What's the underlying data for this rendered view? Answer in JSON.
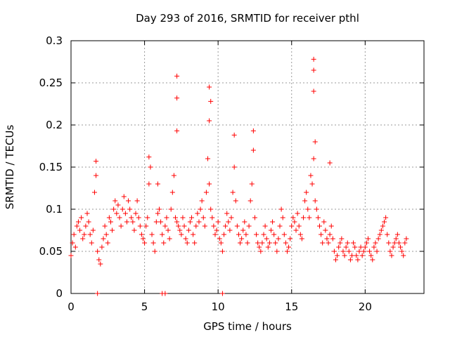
{
  "chart_data": {
    "type": "scatter",
    "title": "Day 293 of 2016, SRMTID for receiver pthl",
    "xlabel": "GPS time / hours",
    "ylabel": "SRMTID / TECUs",
    "xlim": [
      0,
      24
    ],
    "ylim": [
      0,
      0.3
    ],
    "x_ticks": [
      0,
      5,
      10,
      15,
      20
    ],
    "x_tick_labels": [
      "0",
      "5",
      "10",
      "15",
      "20"
    ],
    "y_ticks": [
      0,
      0.05,
      0.1,
      0.15,
      0.2,
      0.25,
      0.3
    ],
    "y_tick_labels": [
      "0",
      "0.05",
      "0.1",
      "0.15",
      "0.2",
      "0.25",
      "0.3"
    ],
    "grid": true,
    "marker": "+",
    "series": [
      {
        "name": "SRMTID",
        "color": "#ff0000",
        "x": [
          0.0,
          0.1,
          0.2,
          0.3,
          0.4,
          0.5,
          0.6,
          0.7,
          0.8,
          0.9,
          1.0,
          1.1,
          1.2,
          1.3,
          1.4,
          1.5,
          1.6,
          1.7,
          1.8,
          1.9,
          2.0,
          2.1,
          2.2,
          2.3,
          2.4,
          2.5,
          2.6,
          2.7,
          2.8,
          2.9,
          3.0,
          3.1,
          3.2,
          3.3,
          3.4,
          3.5,
          3.6,
          3.7,
          3.8,
          3.9,
          4.0,
          4.1,
          4.2,
          4.3,
          4.4,
          4.5,
          4.6,
          4.7,
          4.8,
          4.9,
          5.0,
          5.1,
          5.2,
          5.3,
          5.4,
          5.5,
          5.6,
          5.7,
          5.8,
          5.9,
          6.0,
          6.1,
          6.2,
          6.3,
          6.4,
          6.5,
          6.6,
          6.7,
          6.8,
          6.9,
          7.0,
          7.1,
          7.2,
          7.3,
          7.4,
          7.5,
          7.6,
          7.7,
          7.8,
          7.9,
          8.0,
          8.1,
          8.2,
          8.3,
          8.4,
          8.5,
          8.6,
          8.7,
          8.8,
          8.9,
          9.0,
          9.1,
          9.2,
          9.3,
          9.4,
          9.5,
          9.6,
          9.7,
          9.8,
          9.9,
          10.0,
          10.1,
          10.2,
          10.3,
          10.4,
          10.5,
          10.6,
          10.7,
          10.8,
          10.9,
          11.0,
          11.1,
          11.2,
          11.3,
          11.4,
          11.5,
          11.6,
          11.7,
          11.8,
          11.9,
          12.0,
          12.1,
          12.2,
          12.3,
          12.4,
          12.5,
          12.6,
          12.7,
          12.8,
          12.9,
          13.0,
          13.1,
          13.2,
          13.3,
          13.4,
          13.5,
          13.6,
          13.7,
          13.8,
          13.9,
          14.0,
          14.1,
          14.2,
          14.3,
          14.4,
          14.5,
          14.6,
          14.7,
          14.8,
          14.9,
          15.0,
          15.1,
          15.2,
          15.3,
          15.4,
          15.5,
          15.6,
          15.7,
          15.8,
          15.9,
          16.0,
          16.1,
          16.2,
          16.3,
          16.4,
          16.5,
          16.6,
          16.7,
          16.8,
          16.9,
          17.0,
          17.1,
          17.2,
          17.3,
          17.4,
          17.5,
          17.6,
          17.7,
          17.8,
          17.9,
          18.0,
          18.1,
          18.2,
          18.3,
          18.4,
          18.5,
          18.6,
          18.7,
          18.8,
          18.9,
          19.0,
          19.1,
          19.2,
          19.3,
          19.4,
          19.5,
          19.6,
          19.7,
          19.8,
          19.9,
          20.0,
          20.1,
          20.2,
          20.3,
          20.4,
          20.5,
          20.6,
          20.7,
          20.8,
          20.9,
          21.0,
          21.1,
          21.2,
          21.3,
          21.4,
          21.5,
          21.6,
          21.7,
          21.8,
          21.9,
          22.0,
          22.1,
          22.2,
          22.3,
          22.4,
          22.5,
          22.6,
          22.7,
          22.8,
          1.8,
          6.2,
          6.4,
          10.3,
          7.2,
          7.2,
          7.2,
          9.4,
          9.5,
          9.4,
          16.5,
          16.5,
          16.5,
          16.6,
          12.4,
          11.1,
          5.3,
          5.9,
          1.7,
          17.6
        ],
        "y": [
          0.045,
          0.06,
          0.07,
          0.055,
          0.08,
          0.085,
          0.075,
          0.09,
          0.065,
          0.07,
          0.08,
          0.095,
          0.085,
          0.07,
          0.06,
          0.075,
          0.12,
          0.14,
          0.05,
          0.04,
          0.035,
          0.055,
          0.065,
          0.08,
          0.07,
          0.06,
          0.09,
          0.085,
          0.075,
          0.1,
          0.11,
          0.095,
          0.105,
          0.09,
          0.08,
          0.1,
          0.115,
          0.095,
          0.085,
          0.11,
          0.1,
          0.09,
          0.085,
          0.075,
          0.095,
          0.11,
          0.09,
          0.08,
          0.07,
          0.065,
          0.06,
          0.08,
          0.09,
          0.13,
          0.15,
          0.07,
          0.06,
          0.05,
          0.085,
          0.095,
          0.1,
          0.085,
          0.07,
          0.06,
          0.08,
          0.09,
          0.075,
          0.065,
          0.1,
          0.12,
          0.14,
          0.09,
          0.085,
          0.08,
          0.075,
          0.07,
          0.09,
          0.08,
          0.065,
          0.06,
          0.075,
          0.085,
          0.09,
          0.07,
          0.06,
          0.08,
          0.095,
          0.085,
          0.1,
          0.11,
          0.09,
          0.08,
          0.12,
          0.16,
          0.13,
          0.1,
          0.09,
          0.08,
          0.07,
          0.075,
          0.085,
          0.065,
          0.06,
          0.05,
          0.07,
          0.08,
          0.095,
          0.085,
          0.075,
          0.09,
          0.12,
          0.15,
          0.11,
          0.08,
          0.07,
          0.06,
          0.065,
          0.075,
          0.085,
          0.07,
          0.06,
          0.08,
          0.11,
          0.13,
          0.17,
          0.09,
          0.07,
          0.06,
          0.055,
          0.05,
          0.06,
          0.07,
          0.08,
          0.065,
          0.055,
          0.06,
          0.075,
          0.085,
          0.07,
          0.06,
          0.05,
          0.065,
          0.08,
          0.1,
          0.09,
          0.07,
          0.06,
          0.05,
          0.055,
          0.065,
          0.08,
          0.09,
          0.085,
          0.075,
          0.095,
          0.08,
          0.07,
          0.065,
          0.09,
          0.11,
          0.12,
          0.1,
          0.09,
          0.14,
          0.13,
          0.16,
          0.11,
          0.1,
          0.09,
          0.08,
          0.07,
          0.06,
          0.085,
          0.075,
          0.065,
          0.06,
          0.07,
          0.08,
          0.065,
          0.05,
          0.04,
          0.045,
          0.055,
          0.06,
          0.065,
          0.05,
          0.045,
          0.055,
          0.06,
          0.05,
          0.04,
          0.045,
          0.06,
          0.055,
          0.045,
          0.04,
          0.05,
          0.055,
          0.045,
          0.05,
          0.055,
          0.06,
          0.065,
          0.05,
          0.045,
          0.04,
          0.055,
          0.06,
          0.05,
          0.065,
          0.07,
          0.075,
          0.08,
          0.085,
          0.09,
          0.07,
          0.06,
          0.05,
          0.045,
          0.055,
          0.06,
          0.065,
          0.07,
          0.06,
          0.055,
          0.05,
          0.045,
          0.06,
          0.065,
          0.0,
          0.0,
          0.0,
          0.0,
          0.258,
          0.232,
          0.193,
          0.245,
          0.228,
          0.205,
          0.278,
          0.265,
          0.24,
          0.18,
          0.193,
          0.188,
          0.162,
          0.13,
          0.157,
          0.155
        ]
      }
    ]
  }
}
